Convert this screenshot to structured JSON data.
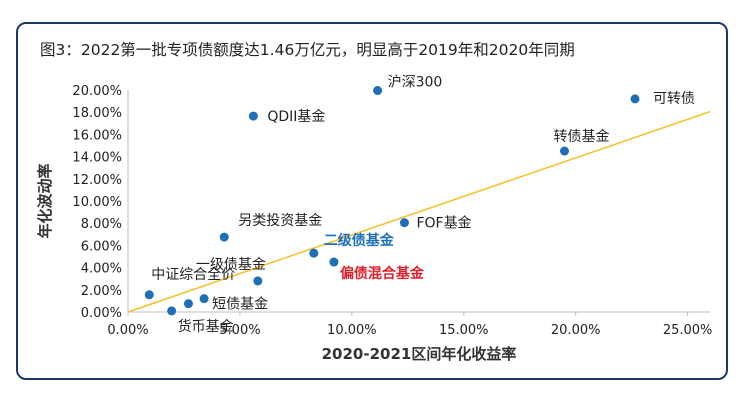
{
  "figure": {
    "title": "图3：2022第一批专项债额度达1.46万亿元，明显高于2019年和2020年同期"
  },
  "chart_data": {
    "type": "scatter",
    "title": "图3：2022第一批专项债额度达1.46万亿元，明显高于2019年和2020年同期",
    "xlabel": "2020-2021区间年化收益率",
    "ylabel": "年化波动率",
    "xlim": [
      0,
      0.26
    ],
    "ylim": [
      0,
      0.2
    ],
    "x_ticks": [
      "0.00%",
      "5.00%",
      "10.00%",
      "15.00%",
      "20.00%",
      "25.00%"
    ],
    "x_tick_values": [
      0,
      0.05,
      0.1,
      0.15,
      0.2,
      0.25
    ],
    "y_ticks": [
      "0.00%",
      "2.00%",
      "4.00%",
      "6.00%",
      "8.00%",
      "10.00%",
      "12.00%",
      "14.00%",
      "16.00%",
      "18.00%",
      "20.00%"
    ],
    "y_tick_values": [
      0,
      0.02,
      0.04,
      0.06,
      0.08,
      0.1,
      0.12,
      0.14,
      0.16,
      0.18,
      0.2
    ],
    "trendline": {
      "x": [
        0,
        0.26
      ],
      "y": [
        0,
        0.1805
      ],
      "color": "#f2c029"
    },
    "marker_color": "#1e6fb8",
    "points": [
      {
        "name": "沪深300",
        "x": 0.1115,
        "y": 0.1995,
        "label_color": "#222222"
      },
      {
        "name": "可转债",
        "x": 0.2265,
        "y": 0.192,
        "label_color": "#222222"
      },
      {
        "name": "QDII基金",
        "x": 0.056,
        "y": 0.1765,
        "label_color": "#222222"
      },
      {
        "name": "转债基金",
        "x": 0.195,
        "y": 0.145,
        "label_color": "#222222"
      },
      {
        "name": "FOF基金",
        "x": 0.1235,
        "y": 0.0805,
        "label_color": "#222222"
      },
      {
        "name": "另类投资基金",
        "x": 0.043,
        "y": 0.0675,
        "label_color": "#222222"
      },
      {
        "name": "二级债基金",
        "x": 0.083,
        "y": 0.053,
        "label_color": "#1e6fb8"
      },
      {
        "name": "偏债混合基金",
        "x": 0.092,
        "y": 0.045,
        "label_color": "#e0202a"
      },
      {
        "name": "一级债基金",
        "x": 0.058,
        "y": 0.028,
        "label_color": "#222222"
      },
      {
        "name": "中证综合全价",
        "x": 0.0095,
        "y": 0.0155,
        "label_color": "#222222"
      },
      {
        "name": "短债基金",
        "x": 0.034,
        "y": 0.012,
        "label_color": "#222222"
      },
      {
        "name": "",
        "x": 0.027,
        "y": 0.0075,
        "label_color": "#222222"
      },
      {
        "name": "货币基金",
        "x": 0.0195,
        "y": 0.001,
        "label_color": "#222222"
      }
    ]
  }
}
